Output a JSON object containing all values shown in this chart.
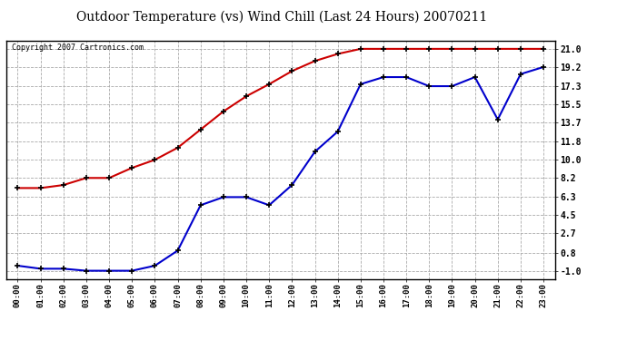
{
  "title": "Outdoor Temperature (vs) Wind Chill (Last 24 Hours) 20070211",
  "copyright_text": "Copyright 2007 Cartronics.com",
  "x_labels": [
    "00:00",
    "01:00",
    "02:00",
    "03:00",
    "04:00",
    "05:00",
    "06:00",
    "07:00",
    "08:00",
    "09:00",
    "10:00",
    "11:00",
    "12:00",
    "13:00",
    "14:00",
    "15:00",
    "16:00",
    "17:00",
    "18:00",
    "19:00",
    "20:00",
    "21:00",
    "22:00",
    "23:00"
  ],
  "temp_values": [
    7.2,
    7.2,
    7.5,
    8.2,
    8.2,
    9.2,
    10.0,
    11.2,
    13.0,
    14.8,
    16.3,
    17.5,
    18.8,
    19.8,
    20.5,
    21.0,
    21.0,
    21.0,
    21.0,
    21.0,
    21.0,
    21.0,
    21.0,
    21.0
  ],
  "windchill_values": [
    -0.5,
    -0.8,
    -0.8,
    -1.0,
    -1.0,
    -1.0,
    -0.5,
    1.0,
    5.5,
    6.3,
    6.3,
    5.5,
    7.5,
    10.8,
    12.8,
    17.5,
    18.2,
    18.2,
    17.3,
    17.3,
    18.2,
    14.0,
    18.5,
    19.2
  ],
  "temp_color": "#cc0000",
  "windchill_color": "#0000cc",
  "bg_color": "#ffffff",
  "grid_color": "#aaaaaa",
  "y_ticks": [
    -1.0,
    0.8,
    2.7,
    4.5,
    6.3,
    8.2,
    10.0,
    11.8,
    13.7,
    15.5,
    17.3,
    19.2,
    21.0
  ],
  "ylim_min": -1.8,
  "ylim_max": 21.8
}
